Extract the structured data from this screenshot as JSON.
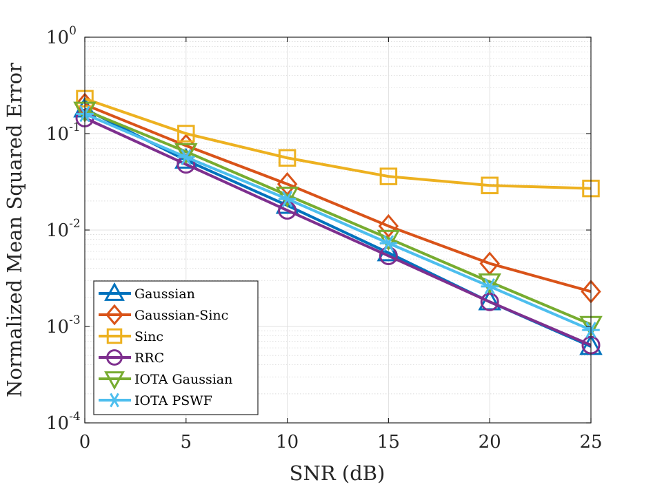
{
  "chart_data": {
    "type": "line",
    "title": "",
    "xlabel": "SNR (dB)",
    "ylabel": "Normalized Mean Squared Error",
    "x": [
      0,
      5,
      10,
      15,
      20,
      25
    ],
    "xlim": [
      0,
      25
    ],
    "xticks": [
      "0",
      "5",
      "10",
      "15",
      "20",
      "25"
    ],
    "yscale": "log",
    "ylim": [
      0.0001,
      1
    ],
    "yticks": [
      {
        "base": "10",
        "exp": "0"
      },
      {
        "base": "10",
        "exp": "-1"
      },
      {
        "base": "10",
        "exp": "-2"
      },
      {
        "base": "10",
        "exp": "-3"
      },
      {
        "base": "10",
        "exp": "-4"
      }
    ],
    "grid": true,
    "legend_position": "bottom-left",
    "series": [
      {
        "name": "Gaussian",
        "color": "#0072BD",
        "marker": "triangle-up",
        "values": [
          0.18,
          0.053,
          0.018,
          0.0058,
          0.0018,
          0.00062
        ]
      },
      {
        "name": "Gaussian-Sinc",
        "color": "#D95319",
        "marker": "diamond",
        "values": [
          0.2,
          0.075,
          0.03,
          0.011,
          0.0045,
          0.0023
        ]
      },
      {
        "name": "Sinc",
        "color": "#EDB120",
        "marker": "square",
        "values": [
          0.23,
          0.1,
          0.056,
          0.036,
          0.029,
          0.027
        ]
      },
      {
        "name": "RRC",
        "color": "#7E2F8E",
        "marker": "circle",
        "values": [
          0.145,
          0.048,
          0.016,
          0.0054,
          0.0018,
          0.00064
        ]
      },
      {
        "name": "IOTA Gaussian",
        "color": "#77AC30",
        "marker": "triangle-down",
        "values": [
          0.175,
          0.065,
          0.023,
          0.0082,
          0.0029,
          0.00105
        ]
      },
      {
        "name": "IOTA PSWF",
        "color": "#4DBEEE",
        "marker": "asterisk",
        "values": [
          0.16,
          0.057,
          0.021,
          0.0073,
          0.0026,
          0.00092
        ]
      }
    ]
  }
}
